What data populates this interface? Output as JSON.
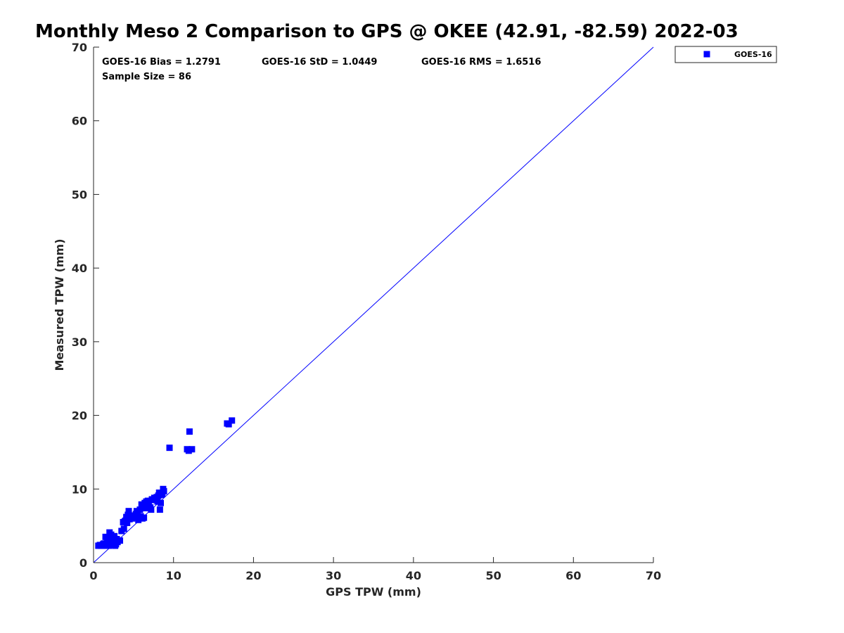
{
  "chart_data": {
    "type": "scatter",
    "title": "Monthly Meso 2 Comparison to GPS @ OKEE (42.91, -82.59) 2022-03",
    "xlabel": "GPS TPW (mm)",
    "ylabel": "Measured TPW (mm)",
    "xlim": [
      0,
      70
    ],
    "ylim": [
      0,
      70
    ],
    "xticks": [
      "0",
      "10",
      "20",
      "30",
      "40",
      "50",
      "60",
      "70"
    ],
    "yticks": [
      "0",
      "10",
      "20",
      "30",
      "40",
      "50",
      "60",
      "70"
    ],
    "grid": false,
    "legend_position": "outside top-right",
    "reference_line": {
      "x": [
        0,
        70
      ],
      "y": [
        0,
        70
      ],
      "color": "#0000ff"
    },
    "annotations": [
      "GOES-16 Bias = 1.2791",
      "GOES-16 StD = 1.0449",
      "GOES-16 RMS = 1.6516",
      "Sample Size = 86"
    ],
    "series": [
      {
        "name": "GOES-16",
        "color": "#0000ff",
        "marker": "square",
        "x": [
          0.6,
          0.9,
          1.1,
          1.4,
          1.6,
          1.9,
          2.1,
          2.4,
          2.7,
          0.8,
          1.2,
          1.5,
          1.8,
          2.0,
          2.3,
          2.6,
          2.9,
          1.3,
          1.7,
          2.2,
          2.5,
          2.8,
          2.0,
          2.4,
          1.9,
          2.6,
          3.5,
          3.8,
          4.0,
          4.2,
          4.5,
          4.8,
          5.0,
          3.9,
          4.3,
          4.4,
          5.2,
          5.5,
          5.8,
          6.1,
          6.3,
          5.6,
          5.7,
          6.0,
          6.4,
          6.6,
          6.8,
          7.0,
          7.3,
          6.9,
          7.2,
          7.6,
          7.9,
          8.1,
          8.3,
          8.6,
          8.8,
          8.2,
          8.4,
          8.0,
          8.5,
          9.5,
          11.7,
          11.9,
          12.0,
          12.3,
          16.7,
          16.9,
          17.3,
          3.0,
          3.3,
          4.6,
          5.3,
          5.9,
          6.2,
          7.5,
          7.8,
          8.7,
          4.1,
          3.7,
          1.0,
          2.5,
          6.5,
          5.4,
          4.7,
          7.1
        ],
        "y": [
          2.3,
          2.3,
          2.3,
          2.3,
          2.4,
          2.3,
          2.5,
          2.4,
          2.3,
          2.4,
          2.5,
          3.5,
          2.8,
          3.0,
          3.3,
          3.6,
          3.2,
          2.6,
          3.1,
          3.8,
          2.9,
          2.5,
          4.1,
          3.0,
          2.7,
          3.4,
          4.3,
          4.6,
          5.7,
          5.4,
          5.9,
          6.0,
          6.2,
          5.6,
          6.5,
          7.0,
          6.1,
          6.8,
          7.2,
          6.0,
          6.1,
          5.8,
          6.3,
          7.9,
          8.1,
          8.3,
          8.4,
          7.5,
          8.6,
          7.7,
          7.2,
          8.8,
          8.9,
          9.1,
          7.2,
          9.4,
          9.7,
          9.5,
          8.1,
          8.3,
          9.2,
          15.6,
          15.4,
          15.2,
          17.8,
          15.4,
          18.9,
          18.8,
          19.3,
          2.8,
          3.0,
          6.4,
          6.6,
          6.3,
          6.1,
          8.5,
          8.7,
          10.0,
          6.2,
          5.5,
          2.3,
          2.6,
          7.4,
          7.0,
          6.4,
          7.5
        ]
      }
    ]
  }
}
